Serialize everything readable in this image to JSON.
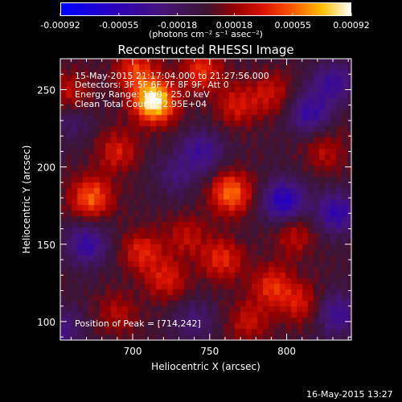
{
  "chart_data": {
    "type": "heatmap",
    "title": "Reconstructed RHESSI Image",
    "xlabel": "Heliocentric X (arcsec)",
    "ylabel": "Heliocentric Y (arcsec)",
    "xlim": [
      653,
      842
    ],
    "ylim": [
      88,
      270
    ],
    "x_ticks": [
      "700",
      "750",
      "800"
    ],
    "x_tick_values": [
      700,
      750,
      800
    ],
    "y_ticks": [
      "100",
      "150",
      "200",
      "250"
    ],
    "y_tick_values": [
      100,
      150,
      200,
      250
    ],
    "colorbar": {
      "ticks": [
        "-0.00092",
        "-0.00055",
        "-0.00018",
        "0.00018",
        "0.00055",
        "0.00092"
      ],
      "tick_values": [
        -0.00092,
        -0.00055,
        -0.00018,
        0.00018,
        0.00055,
        0.00092
      ],
      "min": -0.00092,
      "max": 0.00092,
      "units_label": "(photons cm⁻² s⁻¹ asec⁻²)",
      "colormap": "rainbow-hot: blue → purple → red → orange → yellow → white"
    },
    "annotations": {
      "time_range": "15-May-2015 21:17:04.000 to 21:27:56.000",
      "detectors": "Detectors: 3F 5F 6F 7F 8F 9F, Att 0",
      "energy": "Energy Range: 12.0 - 25.0 keV",
      "clean": "Clean     Total Counts: 2.95E+04",
      "peak": "Position of Peak = [714,242]"
    },
    "blobs": [
      {
        "x": 714,
        "y": 242,
        "value": 0.00092
      },
      {
        "x": 673,
        "y": 180,
        "value": 0.00055
      },
      {
        "x": 764,
        "y": 183,
        "value": 0.00058
      },
      {
        "x": 690,
        "y": 210,
        "value": 0.00035
      },
      {
        "x": 702,
        "y": 262,
        "value": 0.00045
      },
      {
        "x": 745,
        "y": 262,
        "value": 0.00042
      },
      {
        "x": 768,
        "y": 240,
        "value": 0.00035
      },
      {
        "x": 790,
        "y": 248,
        "value": 0.0003
      },
      {
        "x": 706,
        "y": 145,
        "value": 0.00038
      },
      {
        "x": 722,
        "y": 127,
        "value": 0.00035
      },
      {
        "x": 735,
        "y": 155,
        "value": 0.00028
      },
      {
        "x": 758,
        "y": 140,
        "value": 0.0004
      },
      {
        "x": 790,
        "y": 123,
        "value": 0.0004
      },
      {
        "x": 808,
        "y": 112,
        "value": 0.00033
      },
      {
        "x": 775,
        "y": 100,
        "value": 0.0003
      },
      {
        "x": 805,
        "y": 155,
        "value": 0.00028
      },
      {
        "x": 825,
        "y": 210,
        "value": 0.00025
      },
      {
        "x": 690,
        "y": 105,
        "value": 0.00025
      },
      {
        "x": 660,
        "y": 248,
        "value": 0.0003
      },
      {
        "x": 660,
        "y": 230,
        "value": -0.0002
      },
      {
        "x": 798,
        "y": 178,
        "value": -0.0006
      },
      {
        "x": 832,
        "y": 170,
        "value": -0.0005
      },
      {
        "x": 815,
        "y": 235,
        "value": -0.00045
      },
      {
        "x": 830,
        "y": 255,
        "value": -0.0004
      },
      {
        "x": 670,
        "y": 150,
        "value": -0.00045
      },
      {
        "x": 745,
        "y": 210,
        "value": -0.0004
      },
      {
        "x": 728,
        "y": 195,
        "value": -0.00025
      },
      {
        "x": 833,
        "y": 105,
        "value": -0.0004
      },
      {
        "x": 740,
        "y": 100,
        "value": -0.00025
      },
      {
        "x": 655,
        "y": 95,
        "value": -0.0003
      }
    ]
  },
  "footer": {
    "timestamp": "16-May-2015 13:27"
  }
}
